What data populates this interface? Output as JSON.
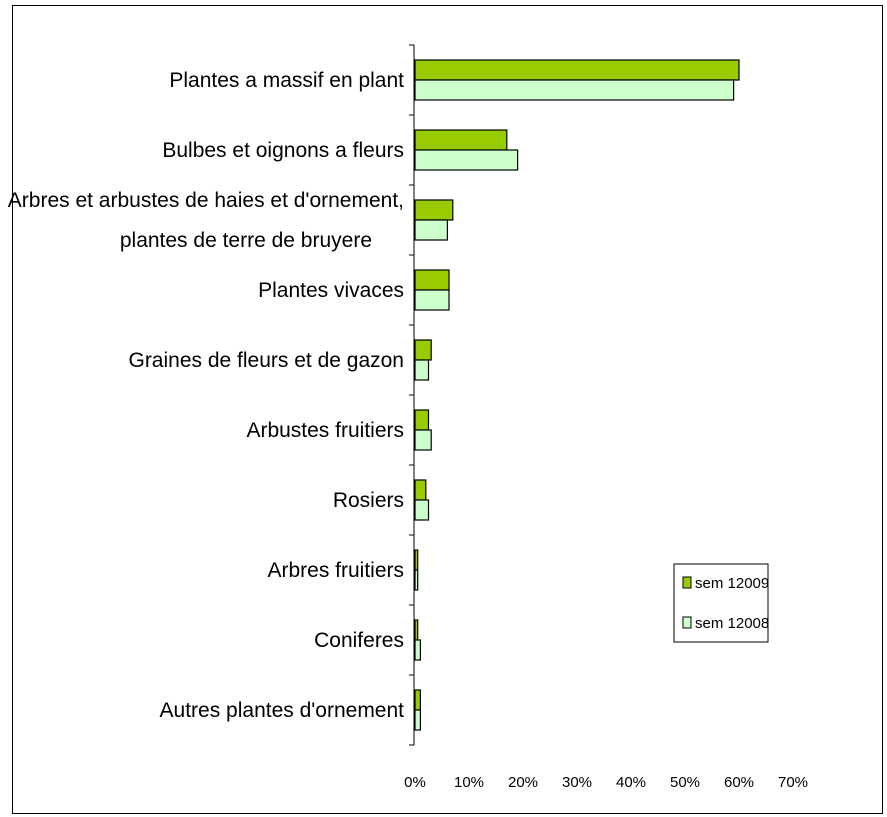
{
  "chart_data": {
    "type": "bar",
    "orientation": "horizontal",
    "categories": [
      "Plantes a massif en plant",
      "Bulbes et oignons a fleurs",
      "Arbres et arbustes de haies et d'ornement, plantes de terre de bruyere",
      "Plantes vivaces",
      "Graines de fleurs et de gazon",
      "Arbustes fruitiers",
      "Rosiers",
      "Arbres fruitiers",
      "Coniferes",
      "Autres plantes d'ornement"
    ],
    "category_lines": [
      [
        "Plantes a massif en plant"
      ],
      [
        "Bulbes et oignons a fleurs"
      ],
      [
        "Arbres et arbustes de haies et d'ornement,",
        "plantes de terre de bruyere"
      ],
      [
        "Plantes vivaces"
      ],
      [
        "Graines de fleurs et de gazon"
      ],
      [
        "Arbustes fruitiers"
      ],
      [
        "Rosiers"
      ],
      [
        "Arbres fruitiers"
      ],
      [
        "Coniferes"
      ],
      [
        "Autres plantes d'ornement"
      ]
    ],
    "series": [
      {
        "name": "sem 12009",
        "color": "#99cc00",
        "values": [
          60,
          17,
          7,
          6.3,
          3,
          2.5,
          2,
          0.5,
          0.5,
          1
        ]
      },
      {
        "name": "sem 12008",
        "color": "#ccffcc",
        "values": [
          59,
          19,
          6,
          6.3,
          2.5,
          3,
          2.5,
          0.5,
          1,
          1
        ]
      }
    ],
    "xlim": [
      0,
      70
    ],
    "xticks": [
      "0%",
      "10%",
      "20%",
      "30%",
      "40%",
      "50%",
      "60%",
      "70%"
    ],
    "xtick_values": [
      0,
      10,
      20,
      30,
      40,
      50,
      60,
      70
    ],
    "legend_position": "right",
    "grid": false
  }
}
